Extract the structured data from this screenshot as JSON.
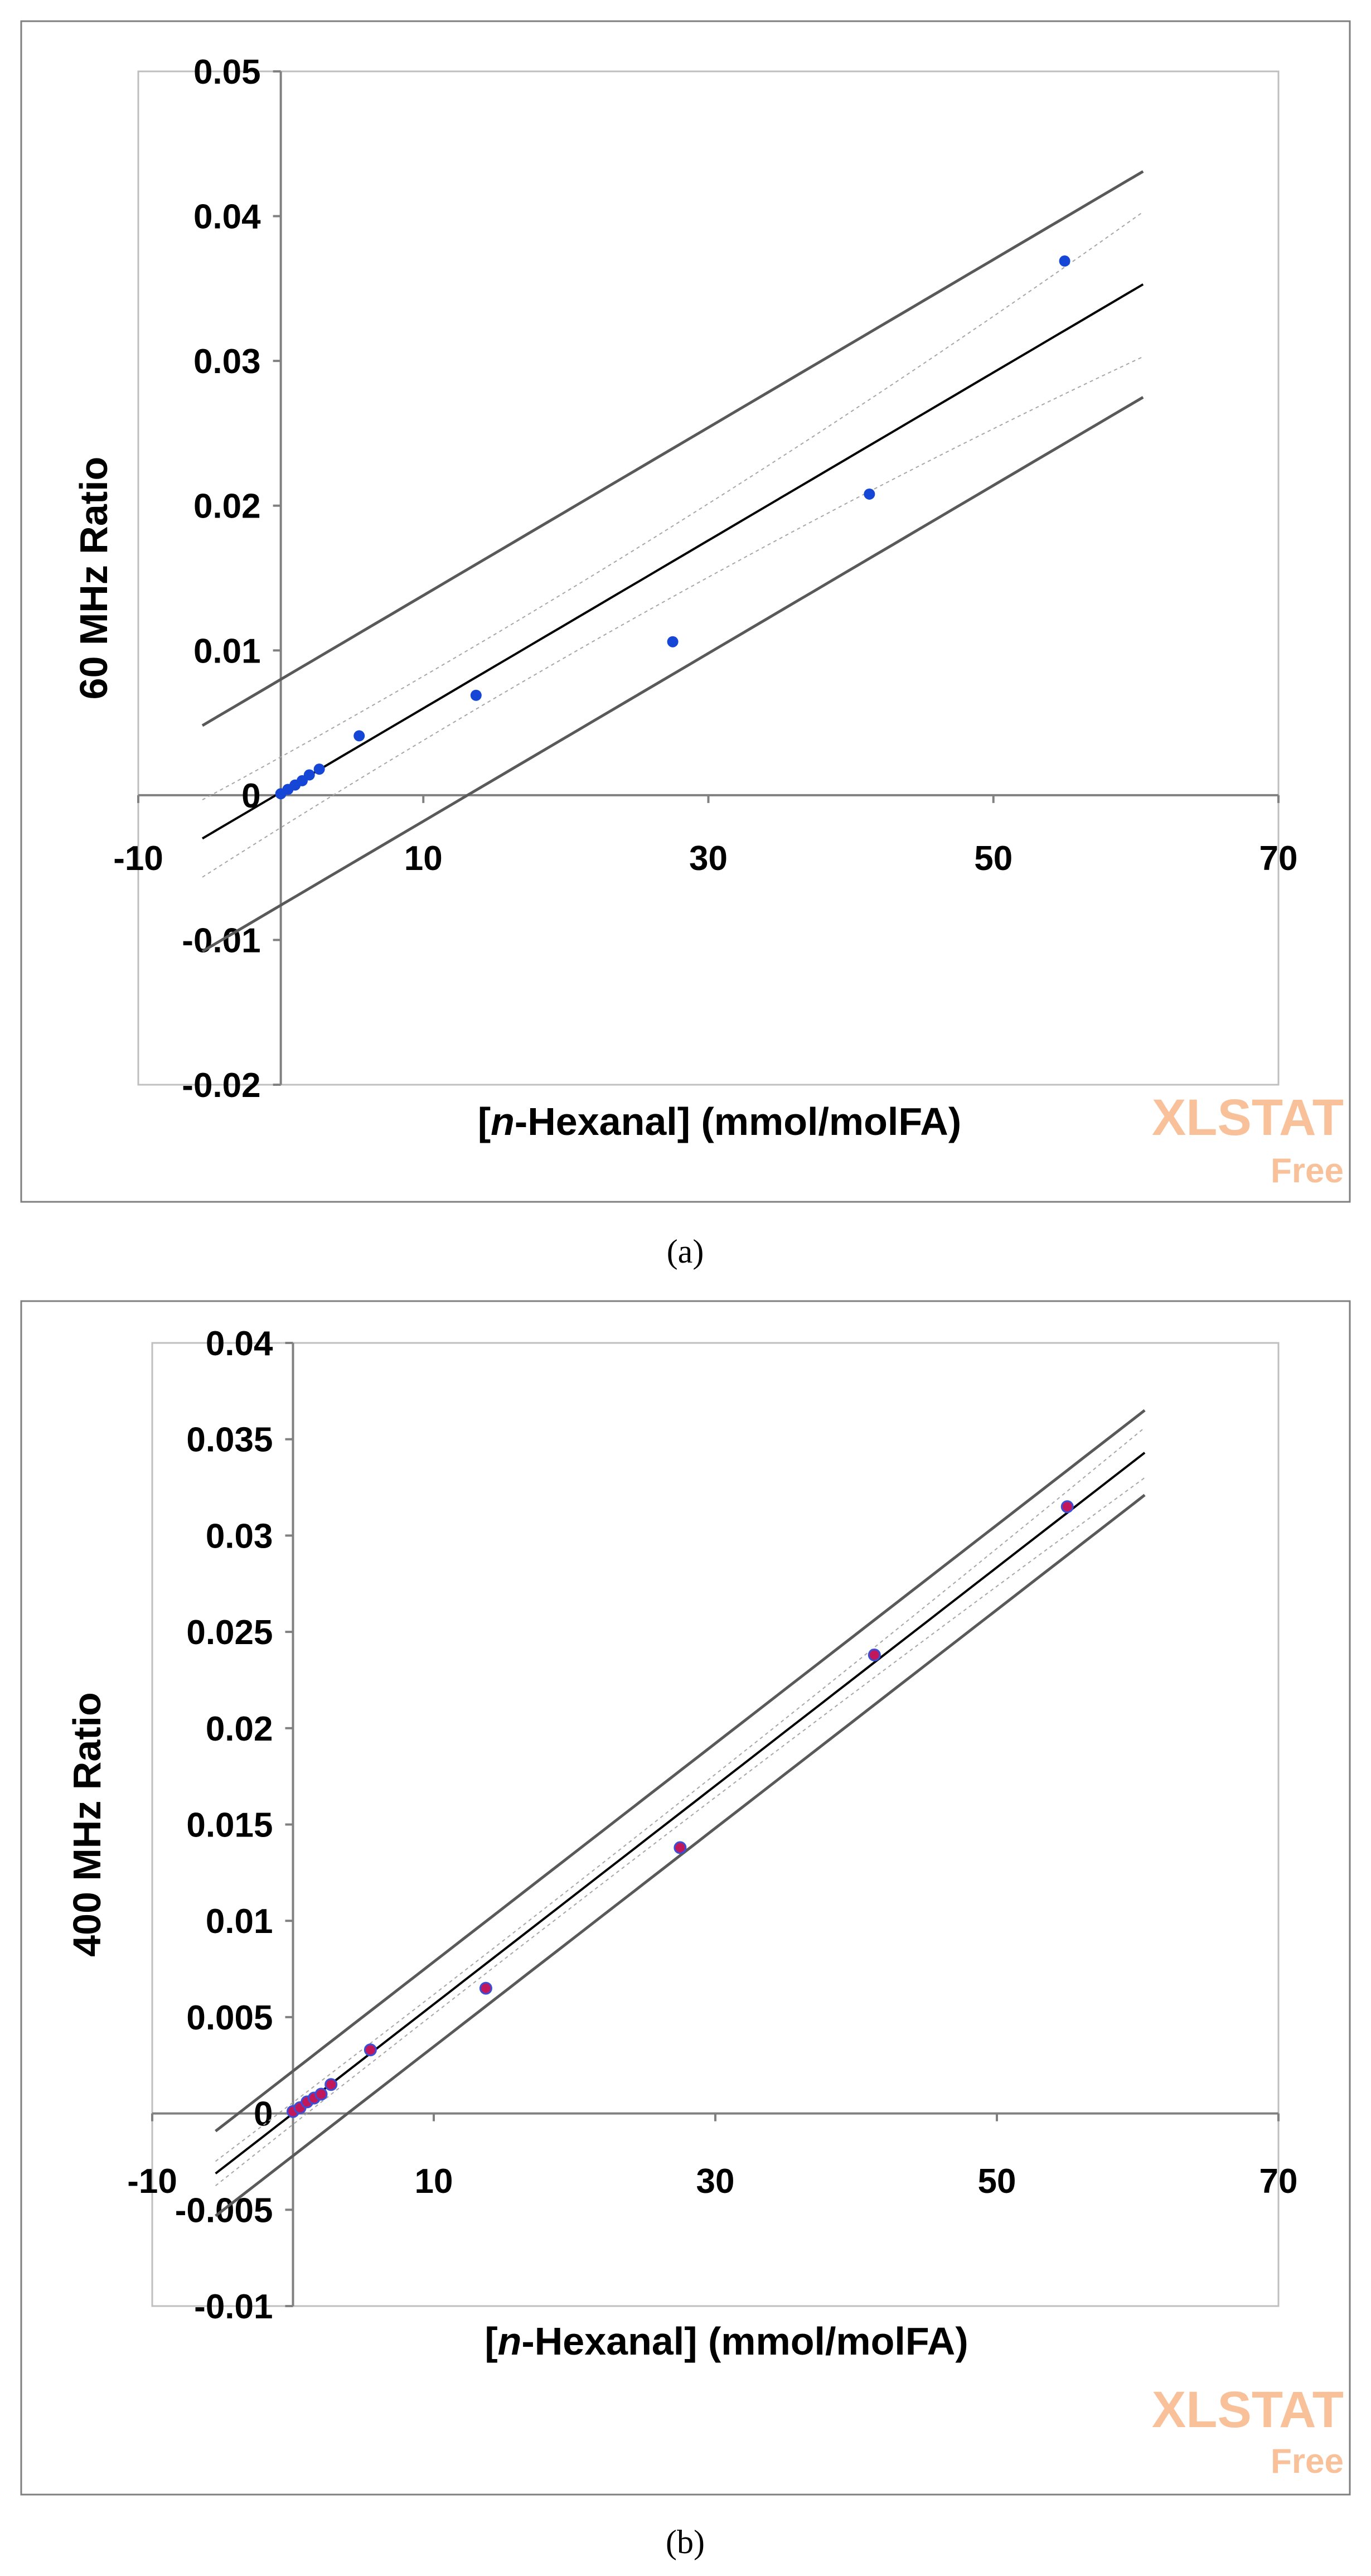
{
  "watermark": {
    "brand": "XLSTAT",
    "edition": "Free",
    "color": "#f8c19a"
  },
  "chart_data": [
    {
      "type": "scatter",
      "caption": "(a)",
      "xlabel_italic": "n",
      "xlabel_prefix": "[",
      "xlabel_rest": "-Hexanal] (mmol/molFA)",
      "ylabel": "60 MHz Ratio",
      "xlim": [
        -10,
        70
      ],
      "ylim": [
        -0.02,
        0.05
      ],
      "x_ticks": [
        -10,
        10,
        30,
        50,
        70
      ],
      "x_tick_labels": [
        "-10",
        "10",
        "30",
        "50",
        "70"
      ],
      "y_ticks": [
        -0.02,
        -0.01,
        0,
        0.01,
        0.02,
        0.03,
        0.04,
        0.05
      ],
      "y_tick_labels": [
        "-0.02",
        "-0.01",
        "0",
        "0.01",
        "0.02",
        "0.03",
        "0.04",
        "0.05"
      ],
      "point_color": "#1646d6",
      "points": {
        "x": [
          0,
          0.5,
          1,
          1.5,
          2,
          2.7,
          5.5,
          13.7,
          27.5,
          41.3,
          55
        ],
        "y": [
          0.0001,
          0.0004,
          0.0007,
          0.001,
          0.0014,
          0.0018,
          0.0041,
          0.0069,
          0.0106,
          0.0208,
          0.0369
        ]
      },
      "fit": {
        "intercept": 0.0002,
        "slope": 0.00058,
        "x_range": [
          -5.5,
          60.5
        ]
      },
      "confidence_band": {
        "half_width_at_mean": 0.0022,
        "half_width_at_ends": 0.005
      },
      "prediction_band": {
        "half_width": 0.0078
      }
    },
    {
      "type": "scatter",
      "caption": "(b)",
      "xlabel_italic": "n",
      "xlabel_prefix": "[",
      "xlabel_rest": "-Hexanal] (mmol/molFA)",
      "ylabel": "400 MHz Ratio",
      "xlim": [
        -10,
        70
      ],
      "ylim": [
        -0.01,
        0.04
      ],
      "x_ticks": [
        -10,
        10,
        30,
        50,
        70
      ],
      "x_tick_labels": [
        "-10",
        "10",
        "30",
        "50",
        "70"
      ],
      "y_ticks": [
        -0.01,
        -0.005,
        0,
        0.005,
        0.01,
        0.015,
        0.02,
        0.025,
        0.03,
        0.035,
        0.04
      ],
      "y_tick_labels": [
        "-0.01",
        "-0.005",
        "0",
        "0.005",
        "0.01",
        "0.015",
        "0.02",
        "0.025",
        "0.03",
        "0.035",
        "0.04"
      ],
      "point_color": "#c0185a",
      "point_edge_color": "#3a4fd8",
      "points": {
        "x": [
          0,
          0.5,
          1,
          1.5,
          2,
          2.7,
          5.5,
          13.7,
          27.5,
          41.3,
          55
        ],
        "y": [
          0.0001,
          0.0003,
          0.0006,
          0.0008,
          0.001,
          0.0015,
          0.0033,
          0.0065,
          0.0138,
          0.0238,
          0.0315
        ]
      },
      "fit": {
        "intercept": 0.0,
        "slope": 0.000567,
        "x_range": [
          -5.5,
          60.5
        ]
      },
      "confidence_band": {
        "half_width_at_mean": 0.0005,
        "half_width_at_ends": 0.0013
      },
      "prediction_band": {
        "half_width": 0.0022
      }
    }
  ]
}
